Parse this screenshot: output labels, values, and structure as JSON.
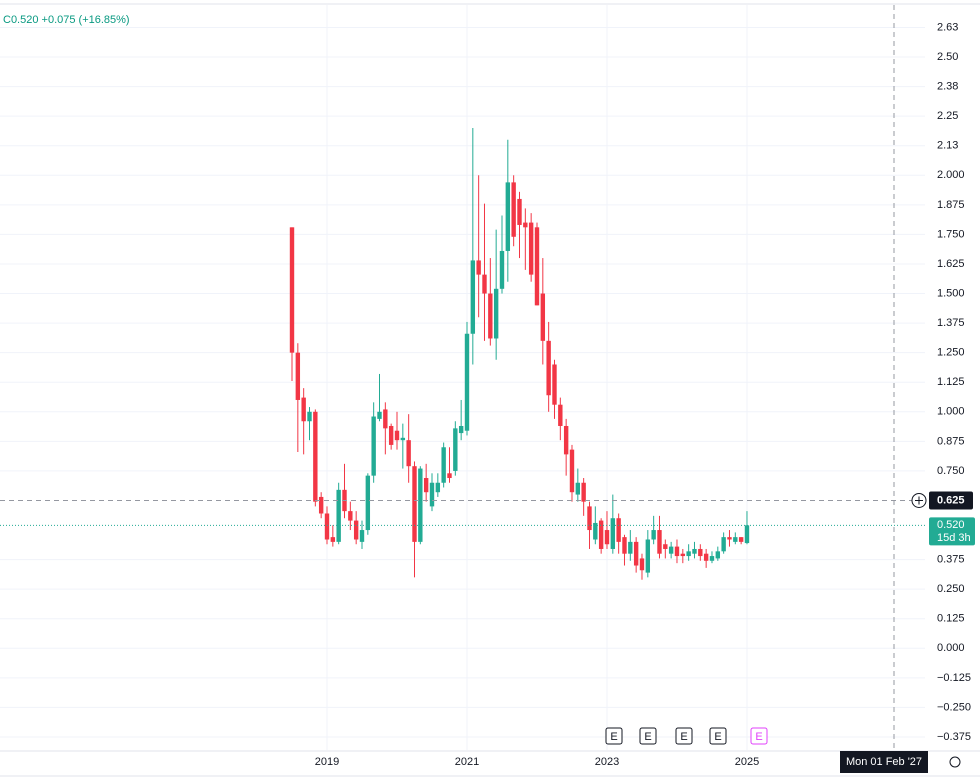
{
  "chart_data": {
    "type": "candlestick",
    "header": "C0.520 +0.075 (+16.85%)",
    "up_color": "#22ab94",
    "down_color": "#f23645",
    "categories": [
      null,
      null,
      null,
      null,
      null,
      null,
      "2019",
      null,
      null,
      null,
      null,
      null,
      null,
      null,
      null,
      null,
      null,
      null,
      null,
      null,
      null,
      null,
      null,
      null,
      null,
      null,
      null,
      null,
      null,
      null,
      "2021",
      null,
      null,
      null,
      null,
      null,
      null,
      null,
      null,
      null,
      null,
      null,
      null,
      null,
      null,
      null,
      null,
      null,
      null,
      null,
      null,
      null,
      null,
      null,
      "2023",
      null,
      null,
      null,
      null,
      null,
      null,
      null,
      null,
      null,
      null,
      null,
      null,
      null,
      null,
      null,
      null,
      null,
      null,
      null,
      null,
      null,
      null,
      null,
      "2025"
    ],
    "open": [
      1.78,
      1.25,
      1.06,
      0.96,
      1.0,
      0.64,
      0.57,
      0.47,
      0.45,
      0.67,
      0.58,
      0.54,
      0.45,
      0.5,
      0.73,
      0.97,
      1.01,
      0.94,
      0.92,
      0.88,
      0.88,
      0.77,
      0.45,
      0.72,
      0.6,
      0.66,
      0.7,
      0.74,
      0.75,
      0.91,
      0.92,
      1.33,
      1.64,
      1.58,
      1.5,
      1.31,
      1.52,
      1.68,
      1.97,
      1.9,
      1.8,
      1.8,
      1.78,
      1.5,
      1.3,
      1.2,
      1.03,
      0.94,
      0.84,
      0.65,
      0.7,
      0.6,
      0.46,
      0.54,
      0.5,
      0.42,
      0.55,
      0.47,
      0.4,
      0.45,
      0.38,
      0.32,
      0.46,
      0.5,
      0.44,
      0.4,
      0.43,
      0.4,
      0.39,
      0.4,
      0.42,
      0.4,
      0.37,
      0.38,
      0.41,
      0.47,
      0.45,
      0.47,
      0.445
    ],
    "high": [
      1.78,
      1.29,
      1.1,
      1.02,
      1.01,
      0.66,
      0.6,
      0.52,
      0.7,
      0.78,
      0.62,
      0.58,
      0.54,
      0.74,
      1.04,
      1.16,
      1.04,
      0.95,
      1.0,
      0.95,
      0.99,
      0.79,
      0.77,
      0.78,
      0.74,
      0.74,
      0.87,
      0.85,
      0.96,
      1.05,
      1.38,
      2.2,
      2.0,
      1.88,
      1.65,
      1.77,
      1.83,
      2.15,
      2.0,
      1.93,
      1.86,
      1.84,
      1.8,
      1.65,
      1.38,
      1.22,
      1.06,
      0.97,
      0.86,
      0.76,
      0.72,
      0.62,
      0.6,
      0.55,
      0.58,
      0.65,
      0.57,
      0.48,
      0.5,
      0.47,
      0.4,
      0.5,
      0.56,
      0.56,
      0.46,
      0.45,
      0.46,
      0.42,
      0.44,
      0.45,
      0.44,
      0.42,
      0.41,
      0.43,
      0.49,
      0.5,
      0.49,
      0.47,
      0.58
    ],
    "low": [
      1.13,
      0.83,
      0.82,
      0.88,
      0.6,
      0.55,
      0.44,
      0.43,
      0.44,
      0.55,
      0.5,
      0.44,
      0.42,
      0.48,
      0.7,
      0.96,
      0.82,
      0.84,
      0.84,
      0.76,
      0.7,
      0.3,
      0.44,
      0.62,
      0.58,
      0.64,
      0.68,
      0.7,
      0.73,
      0.88,
      0.9,
      1.2,
      1.4,
      1.3,
      1.28,
      1.22,
      1.5,
      1.55,
      1.7,
      1.65,
      1.6,
      1.55,
      1.45,
      1.2,
      1.0,
      0.97,
      0.88,
      0.73,
      0.62,
      0.62,
      0.56,
      0.42,
      0.44,
      0.4,
      0.42,
      0.4,
      0.4,
      0.35,
      0.37,
      0.32,
      0.29,
      0.3,
      0.44,
      0.38,
      0.38,
      0.38,
      0.36,
      0.36,
      0.37,
      0.38,
      0.37,
      0.34,
      0.36,
      0.37,
      0.4,
      0.43,
      0.44,
      0.44,
      0.44
    ],
    "close": [
      1.25,
      1.05,
      0.96,
      1.0,
      0.62,
      0.57,
      0.46,
      0.45,
      0.67,
      0.58,
      0.54,
      0.46,
      0.5,
      0.73,
      0.98,
      1.0,
      0.93,
      0.86,
      0.88,
      0.89,
      0.77,
      0.45,
      0.76,
      0.66,
      0.7,
      0.7,
      0.85,
      0.72,
      0.93,
      0.94,
      1.33,
      1.64,
      1.58,
      1.5,
      1.31,
      1.52,
      1.68,
      1.97,
      1.74,
      1.79,
      1.78,
      1.58,
      1.45,
      1.3,
      1.07,
      1.03,
      0.94,
      0.82,
      0.66,
      0.7,
      0.62,
      0.5,
      0.53,
      0.42,
      0.44,
      0.55,
      0.45,
      0.4,
      0.45,
      0.35,
      0.33,
      0.46,
      0.5,
      0.4,
      0.42,
      0.43,
      0.39,
      0.39,
      0.41,
      0.42,
      0.39,
      0.37,
      0.39,
      0.41,
      0.47,
      0.46,
      0.47,
      0.45,
      0.52
    ],
    "ylim": [
      -0.43,
      2.72
    ],
    "yticks": [
      {
        "value": 2.625,
        "label": "2.63"
      },
      {
        "value": 2.5,
        "label": "2.50"
      },
      {
        "value": 2.375,
        "label": "2.38"
      },
      2.25,
      {
        "value": 2.125,
        "label": "2.13"
      },
      {
        "value": 2,
        "label": "2.000"
      },
      1.875,
      {
        "value": 1.75,
        "label": "1.750"
      },
      1.625,
      {
        "value": 1.5,
        "label": "1.500"
      },
      1.375,
      {
        "value": 1.25,
        "label": "1.250"
      },
      1.125,
      {
        "value": 1,
        "label": "1.000"
      },
      0.875,
      {
        "value": 0.75,
        "label": "0.750"
      },
      0.375,
      {
        "value": 0.25,
        "label": "0.250"
      },
      0.125,
      {
        "value": 0,
        "label": "0.000"
      },
      {
        "value": -0.125,
        "label": "−0.125"
      },
      {
        "value": -0.25,
        "label": "−0.250"
      },
      {
        "value": -0.375,
        "label": "−0.375"
      }
    ],
    "grid": true,
    "crosshair_price": {
      "value": 0.625,
      "label": "0.625"
    },
    "last_price": {
      "value": 0.52,
      "label": "0.520",
      "countdown": "15d 3h"
    },
    "crosshair_date": "Mon 01 Feb '27",
    "events": [
      "E",
      "E",
      "E",
      "E",
      "E"
    ]
  }
}
